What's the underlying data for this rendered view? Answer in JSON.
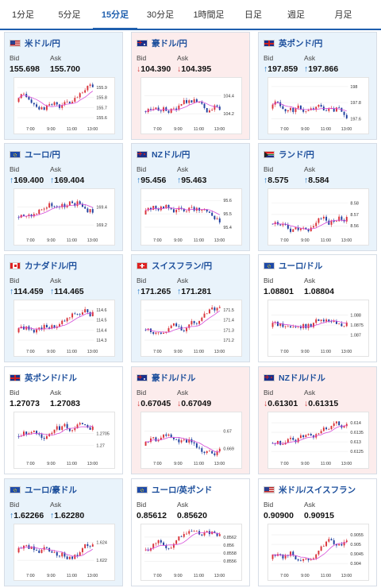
{
  "tabs": [
    {
      "label": "1分足",
      "active": false
    },
    {
      "label": "5分足",
      "active": false
    },
    {
      "label": "15分足",
      "active": true
    },
    {
      "label": "30分足",
      "active": false
    },
    {
      "label": "1時間足",
      "active": false
    },
    {
      "label": "日足",
      "active": false
    },
    {
      "label": "週足",
      "active": false
    },
    {
      "label": "月足",
      "active": false
    }
  ],
  "bid_label": "Bid",
  "ask_label": "Ask",
  "colors": {
    "up_arrow": "#1a74c6",
    "down_arrow": "#d23a3a",
    "bull_candle": "#d9333a",
    "bear_candle": "#1f3f9e",
    "ma_line": "#d548d8",
    "up_bg": "#e9f3fb",
    "down_bg": "#fcecec"
  },
  "pairs": [
    {
      "name": "米ドル/円",
      "flag": "us",
      "trend": "up",
      "bid": "155.698",
      "ask": "155.700",
      "bid_arrow": "",
      "ask_arrow": "",
      "x_ticks": [
        "7:00",
        "9:00",
        "11:00",
        "13:00"
      ],
      "y_ticks": [
        "155.9",
        "155.8",
        "155.7",
        "155.6"
      ],
      "y_range": [
        155.55,
        155.95
      ]
    },
    {
      "name": "豪ドル/円",
      "flag": "au",
      "trend": "down",
      "bid": "104.390",
      "ask": "104.395",
      "bid_arrow": "↓",
      "ask_arrow": "↓",
      "x_ticks": [
        "7:00",
        "9:00",
        "11:00",
        "13:00"
      ],
      "y_ticks": [
        "104.4",
        "104.2"
      ],
      "y_range": [
        104.1,
        104.55
      ]
    },
    {
      "name": "英ポンド/円",
      "flag": "uk",
      "trend": "up",
      "bid": "197.859",
      "ask": "197.866",
      "bid_arrow": "↑",
      "ask_arrow": "↑",
      "x_ticks": [
        "7:00",
        "9:00",
        "11:00",
        "13:00"
      ],
      "y_ticks": [
        "198",
        "197.8",
        "197.6"
      ],
      "y_range": [
        197.55,
        198.05
      ]
    },
    {
      "name": "ユーロ/円",
      "flag": "eu",
      "trend": "up",
      "bid": "169.400",
      "ask": "169.404",
      "bid_arrow": "↑",
      "ask_arrow": "↑",
      "x_ticks": [
        "7:00",
        "9:00",
        "11:00",
        "13:00"
      ],
      "y_ticks": [
        "169.4",
        "169.2"
      ],
      "y_range": [
        169.1,
        169.55
      ]
    },
    {
      "name": "NZドル/円",
      "flag": "nz",
      "trend": "up",
      "bid": "95.456",
      "ask": "95.463",
      "bid_arrow": "↑",
      "ask_arrow": "↑",
      "x_ticks": [
        "7:00",
        "9:00",
        "11:00",
        "13:00"
      ],
      "y_ticks": [
        "95.6",
        "95.5",
        "95.4"
      ],
      "y_range": [
        95.35,
        95.65
      ]
    },
    {
      "name": "ランド/円",
      "flag": "za",
      "trend": "up",
      "bid": "8.575",
      "ask": "8.584",
      "bid_arrow": "↑",
      "ask_arrow": "↑",
      "x_ticks": [
        "7:00",
        "9:00",
        "11:00",
        "13:00"
      ],
      "y_ticks": [
        "8.58",
        "8.57",
        "8.56"
      ],
      "y_range": [
        8.553,
        8.588
      ]
    },
    {
      "name": "カナダドル/円",
      "flag": "ca",
      "trend": "up",
      "bid": "114.459",
      "ask": "114.465",
      "bid_arrow": "↑",
      "ask_arrow": "↑",
      "x_ticks": [
        "7:00",
        "9:00",
        "11:00",
        "13:00"
      ],
      "y_ticks": [
        "114.6",
        "114.5",
        "114.4",
        "114.3"
      ],
      "y_range": [
        114.25,
        114.65
      ]
    },
    {
      "name": "スイスフラン/円",
      "flag": "ch",
      "trend": "up",
      "bid": "171.265",
      "ask": "171.281",
      "bid_arrow": "↑",
      "ask_arrow": "↑",
      "x_ticks": [
        "7:00",
        "9:00",
        "11:00",
        "13:00"
      ],
      "y_ticks": [
        "171.5",
        "171.4",
        "171.3",
        "171.2"
      ],
      "y_range": [
        171.15,
        171.55
      ]
    },
    {
      "name": "ユーロ/ドル",
      "flag": "eu",
      "trend": "flat",
      "bid": "1.08801",
      "ask": "1.08804",
      "bid_arrow": "",
      "ask_arrow": "",
      "x_ticks": [
        "7:00",
        "9:00",
        "11:00",
        "13:00"
      ],
      "y_ticks": [
        "1.088",
        "1.0875",
        "1.087"
      ],
      "y_range": [
        1.0865,
        1.0885
      ]
    },
    {
      "name": "英ポンド/ドル",
      "flag": "uk",
      "trend": "flat",
      "bid": "1.27073",
      "ask": "1.27083",
      "bid_arrow": "",
      "ask_arrow": "",
      "x_ticks": [
        "7:00",
        "9:00",
        "11:00",
        "13:00"
      ],
      "y_ticks": [
        "1.2705",
        "1.27"
      ],
      "y_range": [
        1.2695,
        1.2712
      ]
    },
    {
      "name": "豪ドル/ドル",
      "flag": "au",
      "trend": "down",
      "bid": "0.67045",
      "ask": "0.67049",
      "bid_arrow": "↓",
      "ask_arrow": "↓",
      "x_ticks": [
        "7:00",
        "9:00",
        "11:00",
        "13:00"
      ],
      "y_ticks": [
        "0.67",
        "0.669"
      ],
      "y_range": [
        0.6685,
        0.6708
      ]
    },
    {
      "name": "NZドル/ドル",
      "flag": "nz",
      "trend": "down",
      "bid": "0.61301",
      "ask": "0.61315",
      "bid_arrow": "↓",
      "ask_arrow": "↓",
      "x_ticks": [
        "7:00",
        "9:00",
        "11:00",
        "13:00"
      ],
      "y_ticks": [
        "0.614",
        "0.6135",
        "0.613",
        "0.6125"
      ],
      "y_range": [
        0.6122,
        0.6143
      ]
    },
    {
      "name": "ユーロ/豪ドル",
      "flag": "eu",
      "trend": "up",
      "bid": "1.62266",
      "ask": "1.62280",
      "bid_arrow": "↑",
      "ask_arrow": "↑",
      "x_ticks": [
        "7:00",
        "9:00",
        "11:00",
        "13:00"
      ],
      "y_ticks": [
        "1.624",
        "1.622"
      ],
      "y_range": [
        1.621,
        1.6255
      ]
    },
    {
      "name": "ユーロ/英ポンド",
      "flag": "eu",
      "trend": "flat",
      "bid": "0.85612",
      "ask": "0.85620",
      "bid_arrow": "",
      "ask_arrow": "",
      "x_ticks": [
        "7:00",
        "9:00",
        "11:00",
        "13:00"
      ],
      "y_ticks": [
        "0.8562",
        "0.856",
        "0.8558",
        "0.8556"
      ],
      "y_range": [
        0.8554,
        0.8564
      ]
    },
    {
      "name": "米ドル/スイスフラン",
      "flag": "us",
      "trend": "flat",
      "bid": "0.90900",
      "ask": "0.90915",
      "bid_arrow": "",
      "ask_arrow": "",
      "x_ticks": [
        "7:00",
        "9:00",
        "11:00",
        "13:00"
      ],
      "y_ticks": [
        "0.9055",
        "0.905",
        "0.9045",
        "0.904"
      ],
      "y_range": [
        0.9037,
        0.9058
      ]
    }
  ]
}
